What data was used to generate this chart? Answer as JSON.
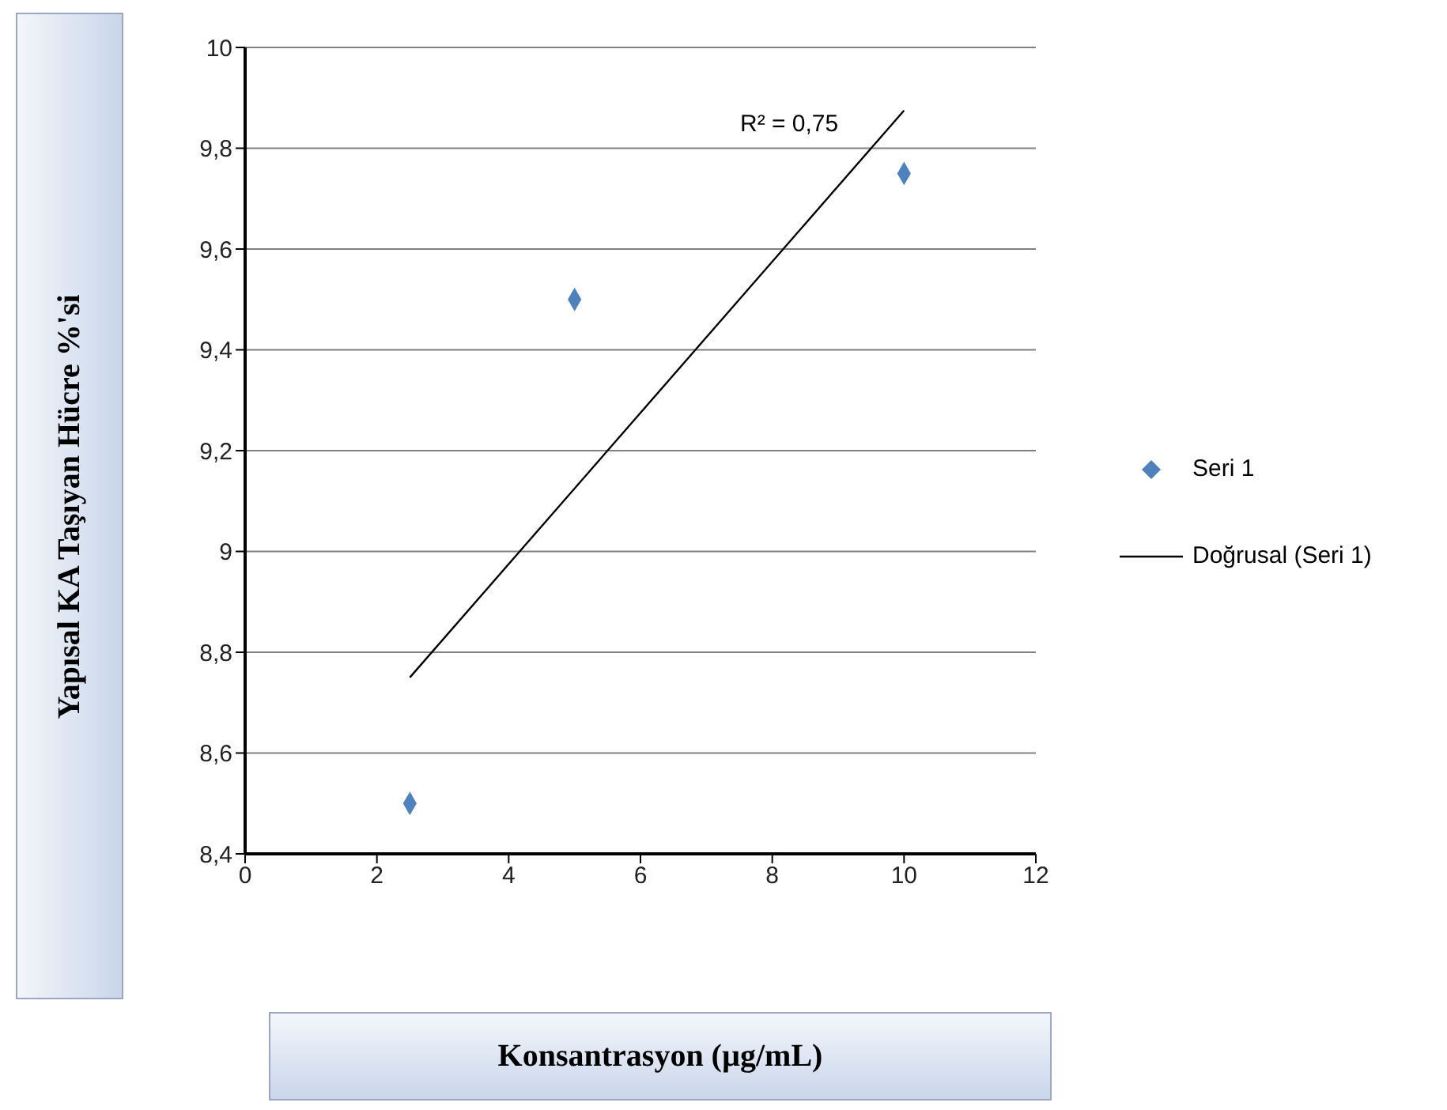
{
  "chart_data": {
    "type": "scatter",
    "xlabel": "Konsantrasyon (µg/mL)",
    "ylabel": "Yapısal KA Taşıyan Hücre %'si",
    "series": [
      {
        "name": "Seri 1",
        "color": "#4f81bd",
        "x": [
          2.5,
          5,
          10
        ],
        "values": [
          8.5,
          9.5,
          9.75
        ],
        "marker": "diamond"
      },
      {
        "name": "Doğrusal (Seri 1)",
        "type": "line",
        "color": "#000000",
        "x": [
          2.5,
          10
        ],
        "values": [
          8.75,
          9.875
        ],
        "marker": "none",
        "line_style": "solid"
      }
    ],
    "xlim": [
      0,
      12
    ],
    "xticks": [
      0,
      2,
      4,
      6,
      8,
      10,
      12
    ],
    "ylim": [
      8.4,
      10
    ],
    "yticks": [
      {
        "value": 8.4,
        "label": "8,4"
      },
      {
        "value": 8.6,
        "label": "8,6"
      },
      {
        "value": 8.8,
        "label": "8,8"
      },
      {
        "value": 9,
        "label": "9"
      },
      {
        "value": 9.2,
        "label": "9,2"
      },
      {
        "value": 9.4,
        "label": "9,4"
      },
      {
        "value": 9.6,
        "label": "9,6"
      },
      {
        "value": 9.8,
        "label": "9,8"
      },
      {
        "value": 10,
        "label": "10"
      }
    ],
    "grid": "y",
    "legend": "right",
    "annotations": [
      "R² = 0,75"
    ]
  }
}
